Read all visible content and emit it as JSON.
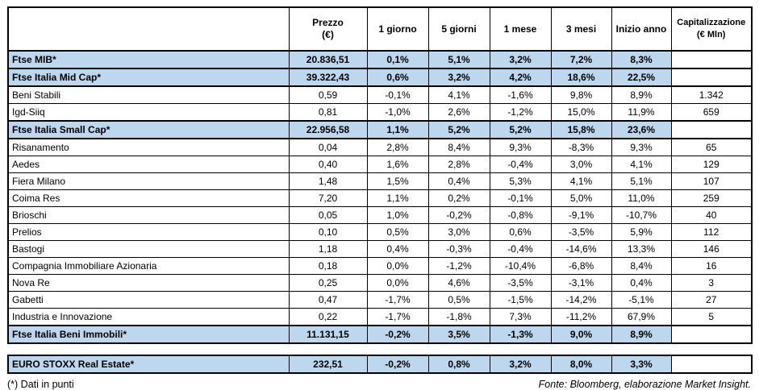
{
  "colors": {
    "highlight_row": "#BDD7EE",
    "border": "#000000",
    "background": "#ffffff"
  },
  "table": {
    "headers": {
      "name": "",
      "prezzo": [
        "Prezzo",
        "(€)"
      ],
      "g1": "1 giorno",
      "g5": "5 giorni",
      "m1": "1 mese",
      "m3": "3 mesi",
      "ytd": "Inizio anno",
      "cap": [
        "Capitalizzazione",
        "(€ Mln)"
      ]
    },
    "rows": [
      {
        "name": "Ftse MIB*",
        "prezzo": "20.836,51",
        "g1": "0,1%",
        "g5": "5,1%",
        "m1": "3,2%",
        "m3": "7,2%",
        "ytd": "8,3%",
        "cap": "",
        "highlight": true
      },
      {
        "name": "Ftse Italia Mid Cap*",
        "prezzo": "39.322,43",
        "g1": "0,6%",
        "g5": "3,2%",
        "m1": "4,2%",
        "m3": "18,6%",
        "ytd": "22,5%",
        "cap": "",
        "highlight": true
      },
      {
        "name": "Beni Stabili",
        "prezzo": "0,59",
        "g1": "-0,1%",
        "g5": "4,1%",
        "m1": "-1,6%",
        "m3": "9,8%",
        "ytd": "8,9%",
        "cap": "1.342",
        "highlight": false
      },
      {
        "name": "Igd-Siiq",
        "prezzo": "0,81",
        "g1": "-1,0%",
        "g5": "2,6%",
        "m1": "-1,2%",
        "m3": "15,0%",
        "ytd": "11,9%",
        "cap": "659",
        "highlight": false
      },
      {
        "name": "Ftse Italia Small Cap*",
        "prezzo": "22.956,58",
        "g1": "1,1%",
        "g5": "5,2%",
        "m1": "5,2%",
        "m3": "15,8%",
        "ytd": "23,6%",
        "cap": "",
        "highlight": true
      },
      {
        "name": "Risanamento",
        "prezzo": "0,04",
        "g1": "2,8%",
        "g5": "8,4%",
        "m1": "9,3%",
        "m3": "-8,3%",
        "ytd": "9,3%",
        "cap": "65",
        "highlight": false
      },
      {
        "name": "Aedes",
        "prezzo": "0,40",
        "g1": "1,6%",
        "g5": "2,8%",
        "m1": "-0,4%",
        "m3": "3,0%",
        "ytd": "4,1%",
        "cap": "129",
        "highlight": false
      },
      {
        "name": "Fiera Milano",
        "prezzo": "1,48",
        "g1": "1,5%",
        "g5": "0,4%",
        "m1": "5,3%",
        "m3": "4,1%",
        "ytd": "5,1%",
        "cap": "107",
        "highlight": false
      },
      {
        "name": "Coima Res",
        "prezzo": "7,20",
        "g1": "1,1%",
        "g5": "0,2%",
        "m1": "-0,1%",
        "m3": "5,0%",
        "ytd": "11,0%",
        "cap": "259",
        "highlight": false
      },
      {
        "name": "Brioschi",
        "prezzo": "0,05",
        "g1": "1,0%",
        "g5": "-0,2%",
        "m1": "-0,8%",
        "m3": "-9,1%",
        "ytd": "-10,7%",
        "cap": "40",
        "highlight": false
      },
      {
        "name": "Prelios",
        "prezzo": "0,10",
        "g1": "0,5%",
        "g5": "3,0%",
        "m1": "0,6%",
        "m3": "-3,5%",
        "ytd": "5,9%",
        "cap": "112",
        "highlight": false
      },
      {
        "name": "Bastogi",
        "prezzo": "1,18",
        "g1": "0,4%",
        "g5": "-0,3%",
        "m1": "-0,4%",
        "m3": "-14,6%",
        "ytd": "13,3%",
        "cap": "146",
        "highlight": false
      },
      {
        "name": "Compagnia Immobiliare Azionaria",
        "prezzo": "0,18",
        "g1": "0,0%",
        "g5": "-1,2%",
        "m1": "-10,4%",
        "m3": "-6,8%",
        "ytd": "8,4%",
        "cap": "16",
        "highlight": false
      },
      {
        "name": "Nova Re",
        "prezzo": "0,25",
        "g1": "0,0%",
        "g5": "4,6%",
        "m1": "-3,5%",
        "m3": "-3,1%",
        "ytd": "0,4%",
        "cap": "3",
        "highlight": false
      },
      {
        "name": "Gabetti",
        "prezzo": "0,47",
        "g1": "-1,7%",
        "g5": "0,5%",
        "m1": "-1,5%",
        "m3": "-14,2%",
        "ytd": "-5,1%",
        "cap": "27",
        "highlight": false
      },
      {
        "name": "Industria e Innovazione",
        "prezzo": "0,22",
        "g1": "-1,7%",
        "g5": "-1,8%",
        "m1": "7,3%",
        "m3": "-11,2%",
        "ytd": "67,9%",
        "cap": "5",
        "highlight": false
      },
      {
        "name": "Ftse Italia Beni Immobili*",
        "prezzo": "11.131,15",
        "g1": "-0,2%",
        "g5": "3,5%",
        "m1": "-1,3%",
        "m3": "9,0%",
        "ytd": "8,9%",
        "cap": "",
        "highlight": true
      }
    ]
  },
  "euro_stoxx": {
    "name": "EURO STOXX Real Estate*",
    "prezzo": "232,51",
    "g1": "-0,2%",
    "g5": "0,8%",
    "m1": "3,2%",
    "m3": "8,0%",
    "ytd": "3,3%",
    "cap": ""
  },
  "footer": {
    "note": "(*) Dati in punti",
    "source": "Fonte: Bloomberg, elaborazione Market Insight."
  }
}
